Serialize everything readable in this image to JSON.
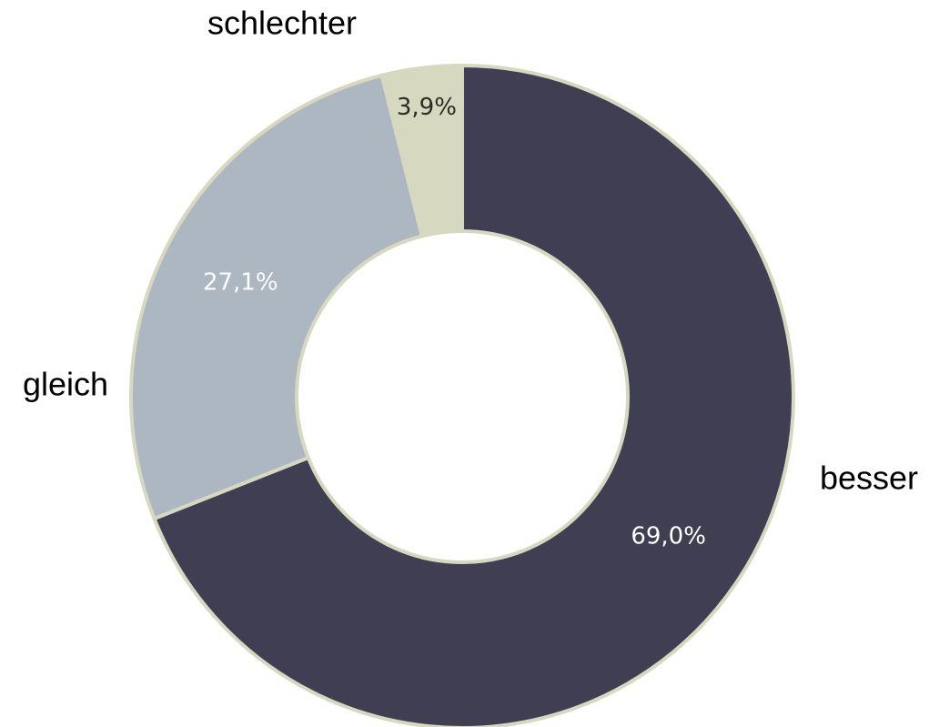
{
  "chart_data": {
    "type": "donut",
    "categories": [
      "besser",
      "gleich",
      "schlechter"
    ],
    "values": [
      69.0,
      27.1,
      3.9
    ],
    "value_labels": [
      "69,0%",
      "27,1%",
      "3,9%"
    ],
    "colors": [
      "#3f3e52",
      "#adb7c1",
      "#d6d8c0"
    ]
  }
}
